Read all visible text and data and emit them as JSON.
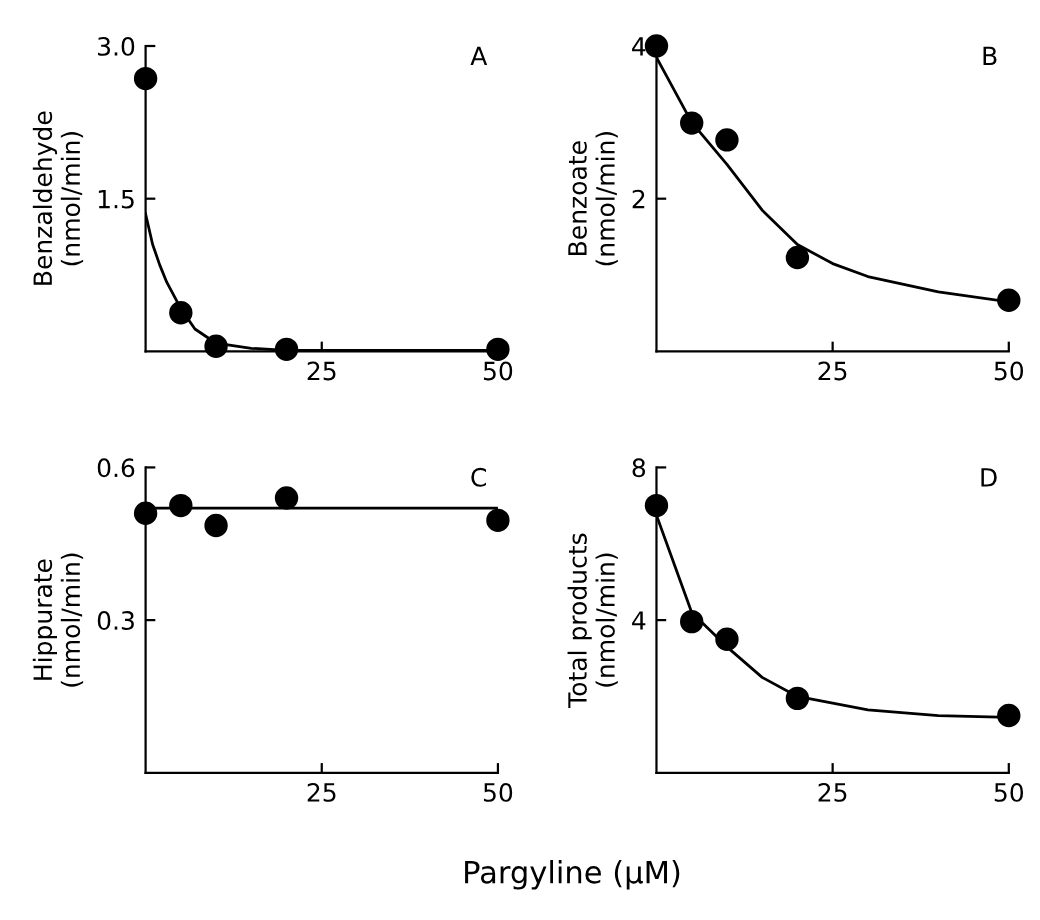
{
  "chart_data": [
    {
      "type": "scatter",
      "ylabel": "Benzaldehyde\n(nmol/min)",
      "annotations": [
        "A"
      ],
      "xlim": [
        0,
        50
      ],
      "xticks": [
        25,
        50
      ],
      "ylim": [
        0,
        3.0
      ],
      "yticks": [
        1.5,
        {
          "value": 3.0,
          "label": "3.0"
        }
      ],
      "grid": false,
      "legend": false,
      "series": [
        {
          "color": "#000000",
          "marker": "circle",
          "x": [
            0,
            5,
            10,
            20,
            50
          ],
          "values": [
            2.68,
            0.38,
            0.05,
            0.02,
            0.02
          ]
        },
        {
          "type": "line",
          "marker": "none",
          "color": "#000000",
          "x": [
            0,
            1,
            2,
            3,
            5,
            7,
            10,
            15,
            20,
            30,
            50
          ],
          "values": [
            1.35,
            1.05,
            0.85,
            0.68,
            0.42,
            0.22,
            0.08,
            0.03,
            0.01,
            0.01,
            0.01
          ]
        }
      ]
    },
    {
      "type": "scatter",
      "ylabel": "Benzoate\n(nmol/min)",
      "annotations": [
        "B"
      ],
      "xlim": [
        0,
        50
      ],
      "xticks": [
        25,
        50
      ],
      "ylim": [
        0,
        4
      ],
      "yticks": [
        2,
        4
      ],
      "grid": false,
      "legend": false,
      "series": [
        {
          "color": "#000000",
          "marker": "circle",
          "x": [
            0,
            5,
            10,
            20,
            50
          ],
          "values": [
            4.0,
            2.99,
            2.77,
            1.23,
            0.67
          ]
        },
        {
          "type": "line",
          "marker": "none",
          "color": "#000000",
          "x": [
            0,
            5,
            10,
            15,
            20,
            25,
            30,
            40,
            50
          ],
          "values": [
            3.85,
            3.0,
            2.45,
            1.85,
            1.4,
            1.15,
            0.98,
            0.78,
            0.65
          ]
        }
      ]
    },
    {
      "type": "scatter",
      "ylabel": "Hippurate\n(nmol/min)",
      "xlabel": "Pargyline (μM)",
      "annotations": [
        "C"
      ],
      "xlim": [
        0,
        50
      ],
      "xticks": [
        25,
        50
      ],
      "ylim": [
        0,
        0.6
      ],
      "yticks": [
        0.3,
        0.6
      ],
      "grid": false,
      "legend": false,
      "series": [
        {
          "color": "#000000",
          "marker": "circle",
          "x": [
            0,
            5,
            10,
            20,
            50
          ],
          "values": [
            0.51,
            0.525,
            0.486,
            0.54,
            0.496
          ]
        },
        {
          "type": "line",
          "marker": "none",
          "color": "#000000",
          "x": [
            0,
            50
          ],
          "values": [
            0.52,
            0.52
          ]
        }
      ]
    },
    {
      "type": "scatter",
      "ylabel": "Total products\n(nmol/min)",
      "annotations": [
        "D"
      ],
      "xlim": [
        0,
        50
      ],
      "xticks": [
        25,
        50
      ],
      "ylim": [
        0,
        8
      ],
      "yticks": [
        4,
        8
      ],
      "grid": false,
      "legend": false,
      "series": [
        {
          "color": "#000000",
          "marker": "circle",
          "x": [
            0,
            5,
            10,
            20,
            50
          ],
          "values": [
            7.0,
            3.96,
            3.5,
            1.95,
            1.5
          ]
        },
        {
          "type": "line",
          "marker": "none",
          "color": "#000000",
          "x": [
            0,
            5,
            10,
            15,
            20,
            30,
            40,
            50
          ],
          "values": [
            6.75,
            4.2,
            3.3,
            2.5,
            2.0,
            1.65,
            1.5,
            1.45
          ]
        }
      ]
    }
  ]
}
